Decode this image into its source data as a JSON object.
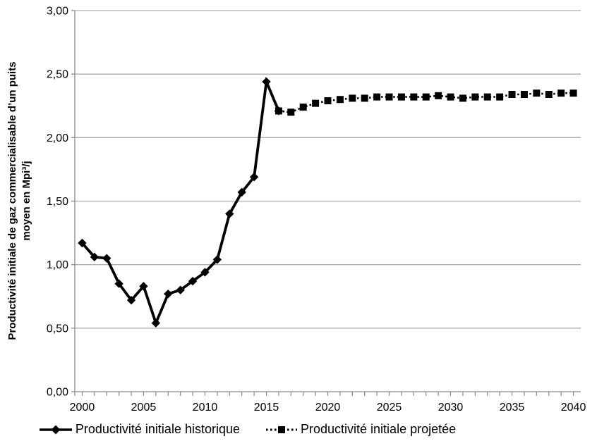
{
  "chart_data": {
    "type": "line",
    "title": "",
    "xlabel": "",
    "ylabel": "Productivité initiale de gaz commercialisable d’un puits moyen en Mpi³/j",
    "ylabel_lines": [
      "Productivité initiale de gaz commercialisable d’un puits",
      "moyen en Mpi³/j"
    ],
    "xlim": [
      1999.4,
      2040.6
    ],
    "ylim": [
      0,
      3
    ],
    "grid": "horizontal",
    "legend_position": "bottom",
    "ytick_values": [
      0,
      0.5,
      1,
      1.5,
      2,
      2.5,
      3
    ],
    "ytick_labels": [
      "0,00",
      "0,50",
      "1,00",
      "1,50",
      "2,00",
      "2,50",
      "3,00"
    ],
    "xtick_values": [
      2000,
      2005,
      2010,
      2015,
      2020,
      2025,
      2030,
      2035,
      2040
    ],
    "xtick_labels": [
      "2000",
      "2005",
      "2010",
      "2015",
      "2020",
      "2025",
      "2030",
      "2035",
      "2040"
    ],
    "minor_xtick_years": [
      2000,
      2040
    ],
    "series": [
      {
        "name": "Productivité initiale historique",
        "marker": "diamond",
        "line": "solid",
        "color": "#000000",
        "x": [
          2000,
          2001,
          2002,
          2003,
          2004,
          2005,
          2006,
          2007,
          2008,
          2009,
          2010,
          2011,
          2012,
          2013,
          2014,
          2015,
          2016
        ],
        "values": [
          1.17,
          1.06,
          1.05,
          0.85,
          0.72,
          0.83,
          0.54,
          0.77,
          0.8,
          0.87,
          0.94,
          1.04,
          1.4,
          1.57,
          1.69,
          2.44,
          2.21
        ]
      },
      {
        "name": "Productivité initiale projetée",
        "marker": "square",
        "line": "dotted",
        "color": "#000000",
        "x": [
          2016,
          2017,
          2018,
          2019,
          2020,
          2021,
          2022,
          2023,
          2024,
          2025,
          2026,
          2027,
          2028,
          2029,
          2030,
          2031,
          2032,
          2033,
          2034,
          2035,
          2036,
          2037,
          2038,
          2039,
          2040
        ],
        "values": [
          2.21,
          2.2,
          2.24,
          2.27,
          2.29,
          2.3,
          2.31,
          2.31,
          2.32,
          2.32,
          2.32,
          2.32,
          2.32,
          2.33,
          2.32,
          2.31,
          2.32,
          2.32,
          2.32,
          2.34,
          2.34,
          2.35,
          2.34,
          2.35,
          2.35
        ]
      }
    ]
  },
  "colors": {
    "background": "#FFFFFF",
    "gridline": "#ADADAD",
    "axis": "#8A8A8A",
    "text": "#000000",
    "series": "#000000"
  }
}
